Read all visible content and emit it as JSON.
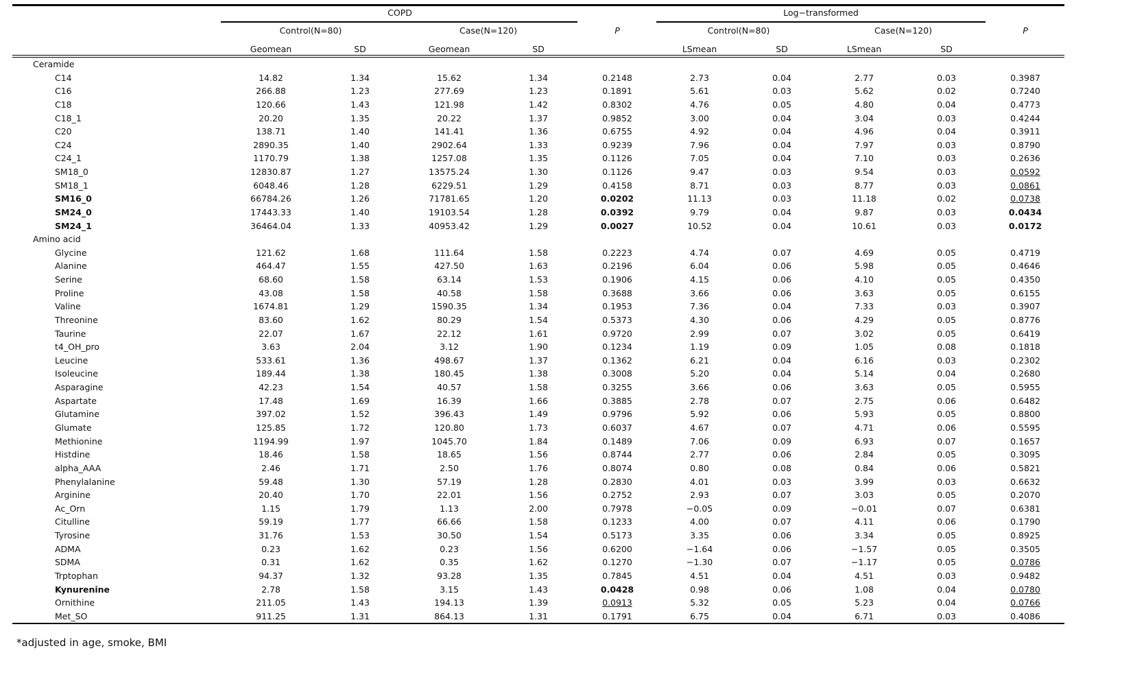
{
  "table": {
    "groups": [
      "COPD",
      "Log−transformed"
    ],
    "subgroups": [
      "Control(N=80)",
      "Case(N=120)",
      "P",
      "Control(N=80)",
      "Case(N=120)",
      "P"
    ],
    "columns": [
      "Geomean",
      "SD",
      "Geomean",
      "SD",
      "LSmean",
      "SD",
      "LSmean",
      "SD"
    ],
    "sections": [
      {
        "title": "Ceramide",
        "rows": [
          {
            "label": "C14",
            "values": [
              "14.82",
              "1.34",
              "15.62",
              "1.34",
              "0.2148",
              "2.73",
              "0.04",
              "2.77",
              "0.03",
              "0.3987"
            ]
          },
          {
            "label": "C16",
            "values": [
              "266.88",
              "1.23",
              "277.69",
              "1.23",
              "0.1891",
              "5.61",
              "0.03",
              "5.62",
              "0.02",
              "0.7240"
            ]
          },
          {
            "label": "C18",
            "values": [
              "120.66",
              "1.43",
              "121.98",
              "1.42",
              "0.8302",
              "4.76",
              "0.05",
              "4.80",
              "0.04",
              "0.4773"
            ]
          },
          {
            "label": "C18_1",
            "values": [
              "20.20",
              "1.35",
              "20.22",
              "1.37",
              "0.9852",
              "3.00",
              "0.04",
              "3.04",
              "0.03",
              "0.4244"
            ]
          },
          {
            "label": "C20",
            "values": [
              "138.71",
              "1.40",
              "141.41",
              "1.36",
              "0.6755",
              "4.92",
              "0.04",
              "4.96",
              "0.04",
              "0.3911"
            ]
          },
          {
            "label": "C24",
            "values": [
              "2890.35",
              "1.40",
              "2902.64",
              "1.33",
              "0.9239",
              "7.96",
              "0.04",
              "7.97",
              "0.03",
              "0.8790"
            ]
          },
          {
            "label": "C24_1",
            "values": [
              "1170.79",
              "1.38",
              "1257.08",
              "1.35",
              "0.1126",
              "7.05",
              "0.04",
              "7.10",
              "0.03",
              "0.2636"
            ]
          },
          {
            "label": "SM18_0",
            "values": [
              "12830.87",
              "1.27",
              "13575.24",
              "1.30",
              "0.1126",
              "9.47",
              "0.03",
              "9.54",
              "0.03",
              "0.0592"
            ],
            "underlined_cells": [
              9
            ]
          },
          {
            "label": "SM18_1",
            "values": [
              "6048.46",
              "1.28",
              "6229.51",
              "1.29",
              "0.4158",
              "8.71",
              "0.03",
              "8.77",
              "0.03",
              "0.0861"
            ],
            "underlined_cells": [
              9
            ]
          },
          {
            "label": "SM16_0",
            "bold": true,
            "values": [
              "66784.26",
              "1.26",
              "71781.65",
              "1.20",
              "0.0202",
              "11.13",
              "0.03",
              "11.18",
              "0.02",
              "0.0738"
            ],
            "bold_cells": [
              4
            ],
            "underlined_cells": [
              9
            ]
          },
          {
            "label": "SM24_0",
            "bold": true,
            "values": [
              "17443.33",
              "1.40",
              "19103.54",
              "1.28",
              "0.0392",
              "9.79",
              "0.04",
              "9.87",
              "0.03",
              "0.0434"
            ],
            "bold_cells": [
              4,
              9
            ]
          },
          {
            "label": "SM24_1",
            "bold": true,
            "values": [
              "36464.04",
              "1.33",
              "40953.42",
              "1.29",
              "0.0027",
              "10.52",
              "0.04",
              "10.61",
              "0.03",
              "0.0172"
            ],
            "bold_cells": [
              4,
              9
            ]
          }
        ]
      },
      {
        "title": "Amino acid",
        "rows": [
          {
            "label": "Glycine",
            "values": [
              "121.62",
              "1.68",
              "111.64",
              "1.58",
              "0.2223",
              "4.74",
              "0.07",
              "4.69",
              "0.05",
              "0.4719"
            ]
          },
          {
            "label": "Alanine",
            "values": [
              "464.47",
              "1.55",
              "427.50",
              "1.63",
              "0.2196",
              "6.04",
              "0.06",
              "5.98",
              "0.05",
              "0.4646"
            ]
          },
          {
            "label": "Serine",
            "values": [
              "68.60",
              "1.58",
              "63.14",
              "1.53",
              "0.1906",
              "4.15",
              "0.06",
              "4.10",
              "0.05",
              "0.4350"
            ]
          },
          {
            "label": "Proline",
            "values": [
              "43.08",
              "1.58",
              "40.58",
              "1.58",
              "0.3688",
              "3.66",
              "0.06",
              "3.63",
              "0.05",
              "0.6155"
            ]
          },
          {
            "label": "Valine",
            "values": [
              "1674.81",
              "1.29",
              "1590.35",
              "1.34",
              "0.1953",
              "7.36",
              "0.04",
              "7.33",
              "0.03",
              "0.3907"
            ]
          },
          {
            "label": "Threonine",
            "values": [
              "83.60",
              "1.62",
              "80.29",
              "1.54",
              "0.5373",
              "4.30",
              "0.06",
              "4.29",
              "0.05",
              "0.8776"
            ]
          },
          {
            "label": "Taurine",
            "values": [
              "22.07",
              "1.67",
              "22.12",
              "1.61",
              "0.9720",
              "2.99",
              "0.07",
              "3.02",
              "0.05",
              "0.6419"
            ]
          },
          {
            "label": "t4_OH_pro",
            "values": [
              "3.63",
              "2.04",
              "3.12",
              "1.90",
              "0.1234",
              "1.19",
              "0.09",
              "1.05",
              "0.08",
              "0.1818"
            ]
          },
          {
            "label": "Leucine",
            "values": [
              "533.61",
              "1.36",
              "498.67",
              "1.37",
              "0.1362",
              "6.21",
              "0.04",
              "6.16",
              "0.03",
              "0.2302"
            ]
          },
          {
            "label": "Isoleucine",
            "values": [
              "189.44",
              "1.38",
              "180.45",
              "1.38",
              "0.3008",
              "5.20",
              "0.04",
              "5.14",
              "0.04",
              "0.2680"
            ]
          },
          {
            "label": "Asparagine",
            "values": [
              "42.23",
              "1.54",
              "40.57",
              "1.58",
              "0.3255",
              "3.66",
              "0.06",
              "3.63",
              "0.05",
              "0.5955"
            ]
          },
          {
            "label": "Aspartate",
            "values": [
              "17.48",
              "1.69",
              "16.39",
              "1.66",
              "0.3885",
              "2.78",
              "0.07",
              "2.75",
              "0.06",
              "0.6482"
            ]
          },
          {
            "label": "Glutamine",
            "values": [
              "397.02",
              "1.52",
              "396.43",
              "1.49",
              "0.9796",
              "5.92",
              "0.06",
              "5.93",
              "0.05",
              "0.8800"
            ]
          },
          {
            "label": "Glumate",
            "values": [
              "125.85",
              "1.72",
              "120.80",
              "1.73",
              "0.6037",
              "4.67",
              "0.07",
              "4.71",
              "0.06",
              "0.5595"
            ]
          },
          {
            "label": "Methionine",
            "values": [
              "1194.99",
              "1.97",
              "1045.70",
              "1.84",
              "0.1489",
              "7.06",
              "0.09",
              "6.93",
              "0.07",
              "0.1657"
            ]
          },
          {
            "label": "Histdine",
            "values": [
              "18.46",
              "1.58",
              "18.65",
              "1.56",
              "0.8744",
              "2.77",
              "0.06",
              "2.84",
              "0.05",
              "0.3095"
            ]
          },
          {
            "label": "alpha_AAA",
            "values": [
              "2.46",
              "1.71",
              "2.50",
              "1.76",
              "0.8074",
              "0.80",
              "0.08",
              "0.84",
              "0.06",
              "0.5821"
            ]
          },
          {
            "label": "Phenylalanine",
            "values": [
              "59.48",
              "1.30",
              "57.19",
              "1.28",
              "0.2830",
              "4.01",
              "0.03",
              "3.99",
              "0.03",
              "0.6632"
            ]
          },
          {
            "label": "Arginine",
            "values": [
              "20.40",
              "1.70",
              "22.01",
              "1.56",
              "0.2752",
              "2.93",
              "0.07",
              "3.03",
              "0.05",
              "0.2070"
            ]
          },
          {
            "label": "Ac_Orn",
            "values": [
              "1.15",
              "1.79",
              "1.13",
              "2.00",
              "0.7978",
              "−0.05",
              "0.09",
              "−0.01",
              "0.07",
              "0.6381"
            ]
          },
          {
            "label": "Citulline",
            "values": [
              "59.19",
              "1.77",
              "66.66",
              "1.58",
              "0.1233",
              "4.00",
              "0.07",
              "4.11",
              "0.06",
              "0.1790"
            ]
          },
          {
            "label": "Tyrosine",
            "values": [
              "31.76",
              "1.53",
              "30.50",
              "1.54",
              "0.5173",
              "3.35",
              "0.06",
              "3.34",
              "0.05",
              "0.8925"
            ]
          },
          {
            "label": "ADMA",
            "values": [
              "0.23",
              "1.62",
              "0.23",
              "1.56",
              "0.6200",
              "−1.64",
              "0.06",
              "−1.57",
              "0.05",
              "0.3505"
            ]
          },
          {
            "label": "SDMA",
            "values": [
              "0.31",
              "1.62",
              "0.35",
              "1.62",
              "0.1270",
              "−1.30",
              "0.07",
              "−1.17",
              "0.05",
              "0.0786"
            ],
            "underlined_cells": [
              9
            ]
          },
          {
            "label": "Trptophan",
            "values": [
              "94.37",
              "1.32",
              "93.28",
              "1.35",
              "0.7845",
              "4.51",
              "0.04",
              "4.51",
              "0.03",
              "0.9482"
            ]
          },
          {
            "label": "Kynurenine",
            "bold": true,
            "values": [
              "2.78",
              "1.58",
              "3.15",
              "1.43",
              "0.0428",
              "0.98",
              "0.06",
              "1.08",
              "0.04",
              "0.0780"
            ],
            "bold_cells": [
              4
            ],
            "underlined_cells": [
              9
            ]
          },
          {
            "label": "Ornithine",
            "values": [
              "211.05",
              "1.43",
              "194.13",
              "1.39",
              "0.0913",
              "5.32",
              "0.05",
              "5.23",
              "0.04",
              "0.0766"
            ],
            "underlined_cells": [
              4,
              9
            ]
          },
          {
            "label": "Met_SO",
            "values": [
              "911.25",
              "1.31",
              "864.13",
              "1.31",
              "0.1791",
              "6.75",
              "0.04",
              "6.71",
              "0.03",
              "0.4086"
            ]
          }
        ]
      }
    ]
  },
  "footnote": "*adjusted in age, smoke, BMI"
}
